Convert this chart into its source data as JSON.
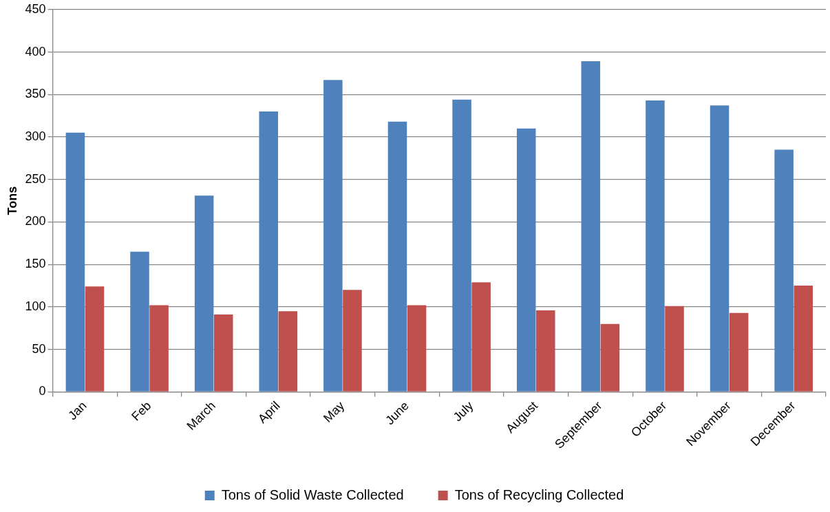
{
  "chart_data": {
    "type": "bar",
    "ylabel": "Tons",
    "categories": [
      "Jan",
      "Feb",
      "March",
      "April",
      "May",
      "June",
      "July",
      "August",
      "September",
      "October",
      "November",
      "December"
    ],
    "series": [
      {
        "name": "Tons of Solid Waste Collected",
        "color": "#4f81bd",
        "values": [
          305,
          165,
          231,
          330,
          367,
          318,
          344,
          310,
          389,
          343,
          337,
          285
        ]
      },
      {
        "name": "Tons of Recycling Collected",
        "color": "#c0504d",
        "values": [
          124,
          102,
          91,
          95,
          120,
          102,
          129,
          96,
          80,
          101,
          93,
          125
        ]
      }
    ],
    "ylim": [
      0,
      450
    ],
    "yticks": [
      0,
      50,
      100,
      150,
      200,
      250,
      300,
      350,
      400,
      450
    ],
    "grid": "y",
    "legend": "bottom"
  }
}
